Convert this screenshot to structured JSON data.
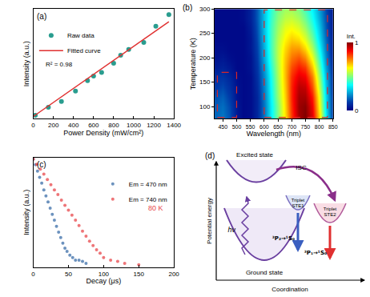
{
  "chart_data": [
    {
      "type": "scatter",
      "panel": "(a)",
      "x_label": "Power Density (mW/cm²)",
      "y_label": "Intensity (a.u.)",
      "series": [
        {
          "name": "Raw data",
          "type": "scatter",
          "marker": "circle",
          "color": "#2a9d8f",
          "x": [
            20,
            150,
            280,
            420,
            540,
            600,
            680,
            800,
            870,
            950,
            1100,
            1220,
            1350
          ],
          "values": [
            0.03,
            0.1,
            0.15,
            0.24,
            0.33,
            0.37,
            0.4,
            0.48,
            0.55,
            0.6,
            0.66,
            0.8,
            0.9
          ]
        },
        {
          "name": "Fitted curve",
          "type": "line",
          "line_style": "solid",
          "color": "#e03030",
          "x": [
            0,
            1350
          ],
          "values": [
            0.02,
            0.84
          ]
        }
      ],
      "annotation": "R² = 0.98",
      "xlim": [
        0,
        1400
      ],
      "xticks": [
        0,
        200,
        400,
        600,
        800,
        1000,
        1200,
        1400
      ],
      "ylim": [
        0,
        0.95
      ],
      "yticks": [],
      "tick_labels": "x",
      "legend": "top-left",
      "grid": false
    },
    {
      "type": "heatmap",
      "panel": "(b)",
      "x_label": "Wavelength (nm)",
      "y_label": "Temperature (K)",
      "x": [
        425,
        450,
        475,
        500,
        525,
        550,
        575,
        600,
        625,
        650,
        675,
        700,
        725,
        750,
        775,
        800,
        825,
        850
      ],
      "y": [
        80,
        100,
        120,
        140,
        160,
        180,
        200,
        220,
        240,
        260,
        280,
        300
      ],
      "cells": [
        [
          0.18,
          0.2,
          0.15,
          0.05,
          0.02,
          0.03,
          0.08,
          0.2,
          0.35,
          0.5,
          0.65,
          0.82,
          0.96,
          1.0,
          0.9,
          0.65,
          0.35,
          0.1
        ],
        [
          0.17,
          0.19,
          0.14,
          0.05,
          0.02,
          0.03,
          0.08,
          0.2,
          0.35,
          0.5,
          0.66,
          0.83,
          0.97,
          0.99,
          0.88,
          0.62,
          0.33,
          0.1
        ],
        [
          0.15,
          0.17,
          0.12,
          0.04,
          0.02,
          0.03,
          0.08,
          0.21,
          0.36,
          0.52,
          0.67,
          0.84,
          0.96,
          0.96,
          0.85,
          0.6,
          0.32,
          0.1
        ],
        [
          0.12,
          0.14,
          0.1,
          0.04,
          0.02,
          0.03,
          0.09,
          0.22,
          0.37,
          0.53,
          0.68,
          0.84,
          0.94,
          0.93,
          0.8,
          0.56,
          0.3,
          0.09
        ],
        [
          0.1,
          0.11,
          0.08,
          0.03,
          0.02,
          0.03,
          0.1,
          0.23,
          0.38,
          0.54,
          0.69,
          0.83,
          0.9,
          0.88,
          0.75,
          0.52,
          0.28,
          0.09
        ],
        [
          0.06,
          0.07,
          0.05,
          0.02,
          0.02,
          0.04,
          0.11,
          0.25,
          0.4,
          0.55,
          0.69,
          0.8,
          0.85,
          0.82,
          0.68,
          0.47,
          0.25,
          0.08
        ],
        [
          0.04,
          0.05,
          0.03,
          0.02,
          0.02,
          0.04,
          0.12,
          0.27,
          0.42,
          0.56,
          0.68,
          0.76,
          0.79,
          0.74,
          0.61,
          0.42,
          0.22,
          0.07
        ],
        [
          0.03,
          0.03,
          0.02,
          0.02,
          0.02,
          0.05,
          0.13,
          0.28,
          0.43,
          0.56,
          0.66,
          0.72,
          0.72,
          0.66,
          0.54,
          0.37,
          0.2,
          0.06
        ],
        [
          0.02,
          0.02,
          0.02,
          0.02,
          0.02,
          0.05,
          0.14,
          0.29,
          0.43,
          0.55,
          0.63,
          0.67,
          0.65,
          0.59,
          0.48,
          0.33,
          0.18,
          0.06
        ],
        [
          0.02,
          0.02,
          0.02,
          0.02,
          0.02,
          0.06,
          0.15,
          0.3,
          0.43,
          0.53,
          0.6,
          0.62,
          0.59,
          0.53,
          0.43,
          0.3,
          0.16,
          0.05
        ],
        [
          0.02,
          0.02,
          0.02,
          0.02,
          0.03,
          0.07,
          0.16,
          0.3,
          0.42,
          0.51,
          0.56,
          0.57,
          0.54,
          0.48,
          0.39,
          0.27,
          0.15,
          0.05
        ],
        [
          0.02,
          0.02,
          0.02,
          0.02,
          0.03,
          0.07,
          0.16,
          0.3,
          0.41,
          0.49,
          0.53,
          0.53,
          0.5,
          0.44,
          0.36,
          0.25,
          0.14,
          0.05
        ]
      ],
      "colorbar_label": "Int.",
      "colorbar_range": [
        0,
        1
      ],
      "colorbar_ticks": [
        0,
        1
      ],
      "regions": [
        {
          "x": [
            430,
            500
          ],
          "y": [
            78,
            170
          ],
          "color": "#d62728",
          "line_style": "dash"
        },
        {
          "x": [
            600,
            830
          ],
          "y": [
            78,
            298
          ],
          "color": "#d62728",
          "line_style": "dash"
        }
      ],
      "xlim": [
        420,
        850
      ],
      "xticks": [
        450,
        500,
        550,
        600,
        650,
        700,
        750,
        800,
        850
      ],
      "ylim": [
        75,
        300
      ],
      "yticks": [
        100,
        150,
        200,
        250,
        300
      ],
      "grid": false
    },
    {
      "type": "scatter",
      "panel": "(c)",
      "x_label": "Decay (μs)",
      "y_label": "Intensity (a.u.)",
      "log": "y",
      "series": [
        {
          "name": "Em = 470 nm",
          "type": "scatter",
          "marker": "circle",
          "color": "#3b6ea8",
          "x": [
            0,
            3,
            6,
            9,
            12,
            15,
            18,
            21,
            24,
            27,
            30,
            33,
            36,
            39,
            42,
            45,
            48,
            52,
            56,
            60,
            65,
            70,
            75
          ],
          "values": [
            1.0,
            0.72,
            0.5,
            0.35,
            0.25,
            0.17,
            0.12,
            0.085,
            0.06,
            0.042,
            0.03,
            0.021,
            0.015,
            0.011,
            0.008,
            0.006,
            0.005,
            0.004,
            0.0035,
            0.003,
            0.003,
            0.0028,
            0.0025
          ]
        },
        {
          "name": "Em = 740 nm",
          "type": "scatter",
          "marker": "circle",
          "color": "#e8474b",
          "x": [
            0,
            5,
            10,
            15,
            20,
            25,
            30,
            35,
            40,
            45,
            50,
            55,
            60,
            65,
            70,
            75,
            80,
            85,
            90,
            95,
            100,
            110,
            120,
            130,
            150
          ],
          "values": [
            1.0,
            0.74,
            0.56,
            0.42,
            0.31,
            0.23,
            0.17,
            0.13,
            0.095,
            0.07,
            0.053,
            0.04,
            0.03,
            0.022,
            0.016,
            0.012,
            0.009,
            0.007,
            0.0055,
            0.0045,
            0.0035,
            0.003,
            0.0028,
            0.0025,
            0.0023
          ]
        }
      ],
      "annotation": "80 K",
      "xlim": [
        0,
        200
      ],
      "xticks": [
        0,
        50,
        100,
        150,
        200
      ],
      "ylim": [
        0.002,
        1.1
      ],
      "yticks": [],
      "tick_labels": "x",
      "legend": "top-right",
      "grid": false
    },
    {
      "type": "diagram",
      "panel": "(d)",
      "y_label": "Potential energy",
      "x_label": "Coordination",
      "labels": {
        "excited": "Excited state",
        "ground": "Ground state",
        "isc": "ISC",
        "ste1": [
          "Triplet",
          "STE1"
        ],
        "ste2": [
          "Triplet",
          "STE2"
        ],
        "emission1": "³P₂→¹S₀",
        "emission2": "³P₁→¹S₀",
        "excitation": "hν"
      }
    }
  ]
}
